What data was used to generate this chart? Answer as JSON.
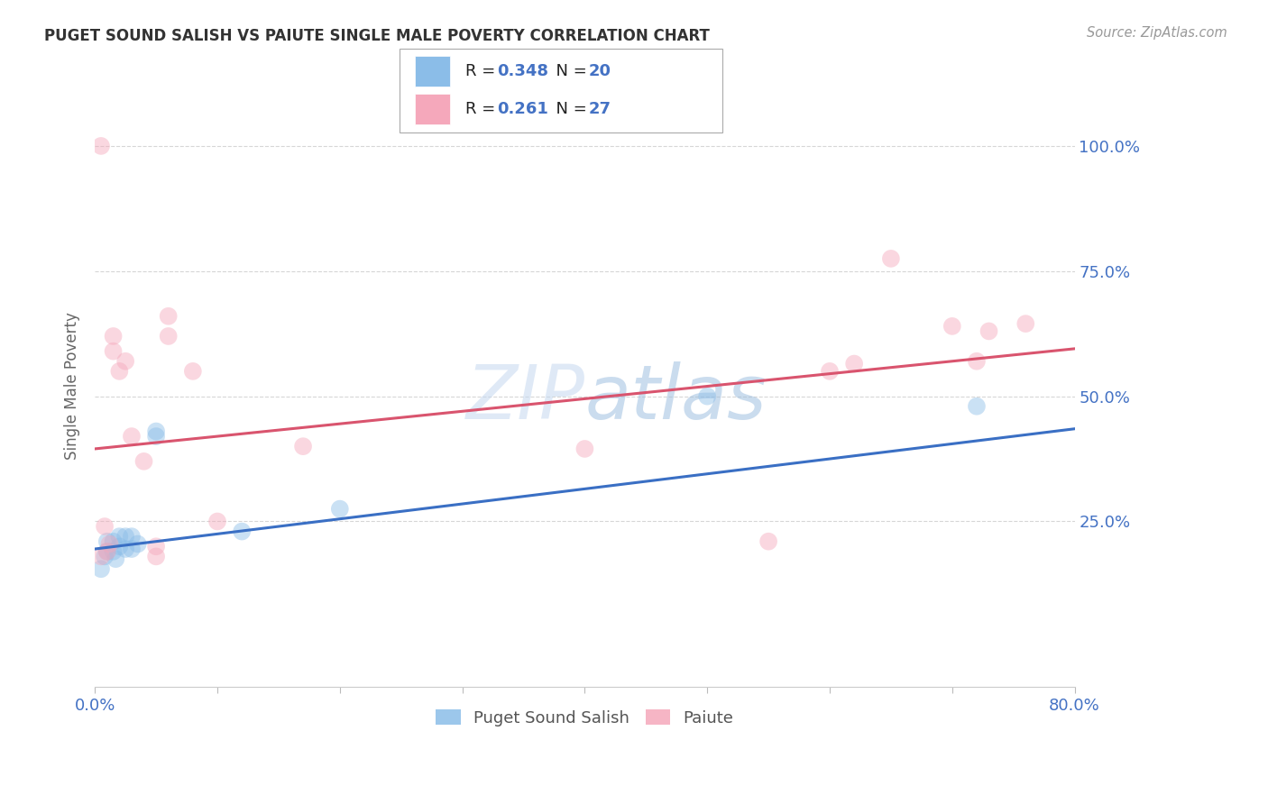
{
  "title": "PUGET SOUND SALISH VS PAIUTE SINGLE MALE POVERTY CORRELATION CHART",
  "source": "Source: ZipAtlas.com",
  "ylabel": "Single Male Poverty",
  "ytick_labels": [
    "100.0%",
    "75.0%",
    "50.0%",
    "25.0%"
  ],
  "ytick_values": [
    1.0,
    0.75,
    0.5,
    0.25
  ],
  "xlim": [
    0.0,
    0.8
  ],
  "ylim": [
    -0.08,
    1.12
  ],
  "blue_R": "0.348",
  "blue_N": "20",
  "pink_R": "0.261",
  "pink_N": "27",
  "legend_label_blue": "Puget Sound Salish",
  "legend_label_pink": "Paiute",
  "blue_color": "#8bbde8",
  "pink_color": "#f5a8bb",
  "blue_line_color": "#3a6fc4",
  "pink_line_color": "#d9546e",
  "title_color": "#333333",
  "axis_label_color": "#666666",
  "tick_label_color": "#4472c4",
  "source_color": "#999999",
  "watermark_color": "#c8d8ee",
  "blue_scatter_x": [
    0.005,
    0.008,
    0.01,
    0.01,
    0.015,
    0.015,
    0.017,
    0.02,
    0.02,
    0.025,
    0.025,
    0.03,
    0.03,
    0.035,
    0.05,
    0.05,
    0.12,
    0.2,
    0.5,
    0.72
  ],
  "blue_scatter_y": [
    0.155,
    0.18,
    0.19,
    0.21,
    0.19,
    0.21,
    0.175,
    0.2,
    0.22,
    0.195,
    0.22,
    0.195,
    0.22,
    0.205,
    0.42,
    0.43,
    0.23,
    0.275,
    0.5,
    0.48
  ],
  "pink_scatter_x": [
    0.005,
    0.008,
    0.01,
    0.012,
    0.015,
    0.015,
    0.02,
    0.025,
    0.03,
    0.04,
    0.05,
    0.05,
    0.06,
    0.06,
    0.08,
    0.1,
    0.17,
    0.4,
    0.55,
    0.6,
    0.62,
    0.65,
    0.7,
    0.72,
    0.73,
    0.76,
    0.005
  ],
  "pink_scatter_y": [
    0.18,
    0.24,
    0.19,
    0.205,
    0.59,
    0.62,
    0.55,
    0.57,
    0.42,
    0.37,
    0.18,
    0.2,
    0.62,
    0.66,
    0.55,
    0.25,
    0.4,
    0.395,
    0.21,
    0.55,
    0.565,
    0.775,
    0.64,
    0.57,
    0.63,
    0.645,
    1.0
  ],
  "blue_line_x0": 0.0,
  "blue_line_y0": 0.195,
  "blue_line_x1": 0.8,
  "blue_line_y1": 0.435,
  "pink_line_x0": 0.0,
  "pink_line_y0": 0.395,
  "pink_line_x1": 0.8,
  "pink_line_y1": 0.595,
  "marker_size": 200,
  "marker_alpha": 0.45,
  "line_width": 2.2,
  "grid_color": "#cccccc",
  "grid_alpha": 0.8,
  "background_color": "#ffffff"
}
